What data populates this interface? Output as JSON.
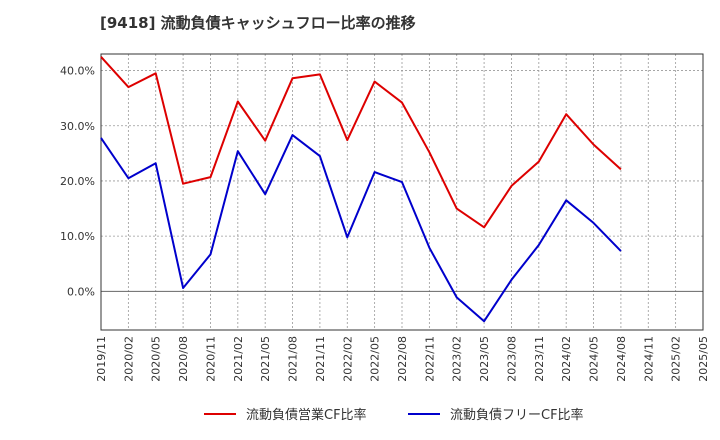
{
  "chart_data": {
    "type": "line",
    "title": "[9418]  流動負債キャッシュフロー比率の推移",
    "x": [
      "2019/11",
      "2020/02",
      "2020/05",
      "2020/08",
      "2020/11",
      "2021/02",
      "2021/05",
      "2021/08",
      "2021/11",
      "2022/02",
      "2022/05",
      "2022/08",
      "2022/11",
      "2023/02",
      "2023/05",
      "2023/08",
      "2023/11",
      "2024/02",
      "2024/05",
      "2024/08",
      "2024/11",
      "2025/02",
      "2025/05"
    ],
    "yticks": [
      "40.0%",
      "30.0%",
      "20.0%",
      "10.0%",
      "0.0%"
    ],
    "ylim": [
      -7,
      43
    ],
    "grid": true,
    "legend_position": "bottom",
    "series": [
      {
        "name": "流動負債営業CF比率",
        "color": "#dd0000",
        "values": [
          42.5,
          37.0,
          39.5,
          19.5,
          20.7,
          34.4,
          27.3,
          38.6,
          39.3,
          27.4,
          38.0,
          34.2,
          25.2,
          15.0,
          11.6,
          19.1,
          23.5,
          32.1,
          26.6,
          22.1,
          null,
          null,
          null
        ]
      },
      {
        "name": "流動負債フリーCF比率",
        "color": "#0000cc",
        "values": [
          27.8,
          20.5,
          23.2,
          0.6,
          6.7,
          25.4,
          17.6,
          28.3,
          24.5,
          9.8,
          21.6,
          19.8,
          7.9,
          -1.1,
          -5.4,
          2.1,
          8.4,
          16.5,
          12.4,
          7.3,
          null,
          null,
          null
        ]
      }
    ]
  }
}
